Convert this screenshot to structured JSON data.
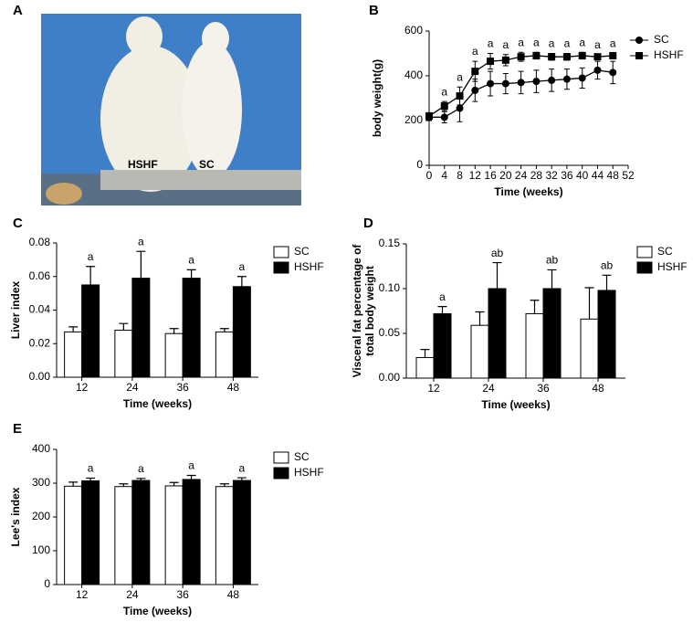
{
  "photo": {
    "panel": "A",
    "labels": [
      "HSHF",
      "SC"
    ]
  },
  "chart_data": [
    {
      "type": "line",
      "panel": "B",
      "xlabel": "Time (weeks)",
      "ylabel": [
        "body weight(g)"
      ],
      "x": [
        0,
        4,
        8,
        12,
        16,
        20,
        24,
        28,
        32,
        36,
        40,
        44,
        48
      ],
      "xlim": [
        0,
        52
      ],
      "xticks": [
        0,
        4,
        8,
        12,
        16,
        20,
        24,
        28,
        32,
        36,
        40,
        44,
        48,
        52
      ],
      "ylim": [
        0,
        600
      ],
      "yticks": [
        0,
        200,
        400,
        600
      ],
      "series": [
        {
          "name": "SC",
          "color": "#000000",
          "marker": "circle",
          "values": [
            215,
            215,
            255,
            335,
            365,
            365,
            370,
            375,
            380,
            385,
            390,
            425,
            415
          ],
          "errors": [
            15,
            25,
            60,
            50,
            55,
            45,
            50,
            50,
            50,
            45,
            45,
            40,
            50
          ]
        },
        {
          "name": "HSHF",
          "color": "#000000",
          "marker": "square",
          "values": [
            220,
            265,
            310,
            420,
            465,
            470,
            485,
            490,
            485,
            485,
            490,
            485,
            490
          ],
          "errors": [
            15,
            20,
            40,
            45,
            35,
            25,
            20,
            15,
            15,
            15,
            15,
            10,
            10
          ]
        }
      ],
      "annotations": [
        null,
        "a",
        "a",
        "a",
        "a",
        "a",
        "a",
        "a",
        "a",
        "a",
        "a",
        "a",
        "a"
      ]
    },
    {
      "type": "bar",
      "panel": "C",
      "xlabel": "Time (weeks)",
      "ylabel": [
        "Liver index"
      ],
      "categories": [
        "12",
        "24",
        "36",
        "48"
      ],
      "ylim": [
        0,
        0.08
      ],
      "yticks": [
        {
          "value": 0,
          "label": "0.00"
        },
        {
          "value": 0.02,
          "label": "0.02"
        },
        {
          "value": 0.04,
          "label": "0.04"
        },
        {
          "value": 0.06,
          "label": "0.06"
        },
        {
          "value": 0.08,
          "label": "0.08"
        }
      ],
      "series": [
        {
          "name": "SC",
          "color": "#ffffff",
          "values": [
            0.027,
            0.028,
            0.026,
            0.027
          ],
          "errors": [
            0.003,
            0.004,
            0.003,
            0.002
          ]
        },
        {
          "name": "HSHF",
          "color": "#000000",
          "values": [
            0.055,
            0.059,
            0.059,
            0.054
          ],
          "errors": [
            0.011,
            0.016,
            0.005,
            0.006
          ]
        }
      ],
      "annotations": [
        "a",
        "a",
        "a",
        "a"
      ]
    },
    {
      "type": "bar",
      "panel": "D",
      "xlabel": "Time (weeks)",
      "ylabel": [
        "Visceral fat percentage of",
        "total body weight"
      ],
      "categories": [
        "12",
        "24",
        "36",
        "48"
      ],
      "ylim": [
        0,
        0.15
      ],
      "yticks": [
        {
          "value": 0,
          "label": "0.00"
        },
        {
          "value": 0.05,
          "label": "0.05"
        },
        {
          "value": 0.1,
          "label": "0.10"
        },
        {
          "value": 0.15,
          "label": "0.15"
        }
      ],
      "series": [
        {
          "name": "SC",
          "color": "#ffffff",
          "values": [
            0.023,
            0.059,
            0.072,
            0.066
          ],
          "errors": [
            0.009,
            0.015,
            0.015,
            0.035
          ]
        },
        {
          "name": "HSHF",
          "color": "#000000",
          "values": [
            0.072,
            0.1,
            0.1,
            0.098
          ],
          "errors": [
            0.008,
            0.029,
            0.021,
            0.017
          ]
        }
      ],
      "annotations": [
        "a",
        "ab",
        "ab",
        "ab"
      ]
    },
    {
      "type": "bar",
      "panel": "E",
      "xlabel": "Time (weeks)",
      "ylabel": [
        "Lee's index"
      ],
      "categories": [
        "12",
        "24",
        "36",
        "48"
      ],
      "ylim": [
        0,
        400
      ],
      "yticks": [
        0,
        100,
        200,
        300,
        400
      ],
      "series": [
        {
          "name": "SC",
          "color": "#ffffff",
          "values": [
            291,
            290,
            292,
            290
          ],
          "errors": [
            12,
            8,
            10,
            8
          ]
        },
        {
          "name": "HSHF",
          "color": "#000000",
          "values": [
            307,
            308,
            311,
            308
          ],
          "errors": [
            8,
            6,
            12,
            8
          ]
        }
      ],
      "annotations": [
        "a",
        "a",
        "a",
        "a"
      ]
    }
  ]
}
